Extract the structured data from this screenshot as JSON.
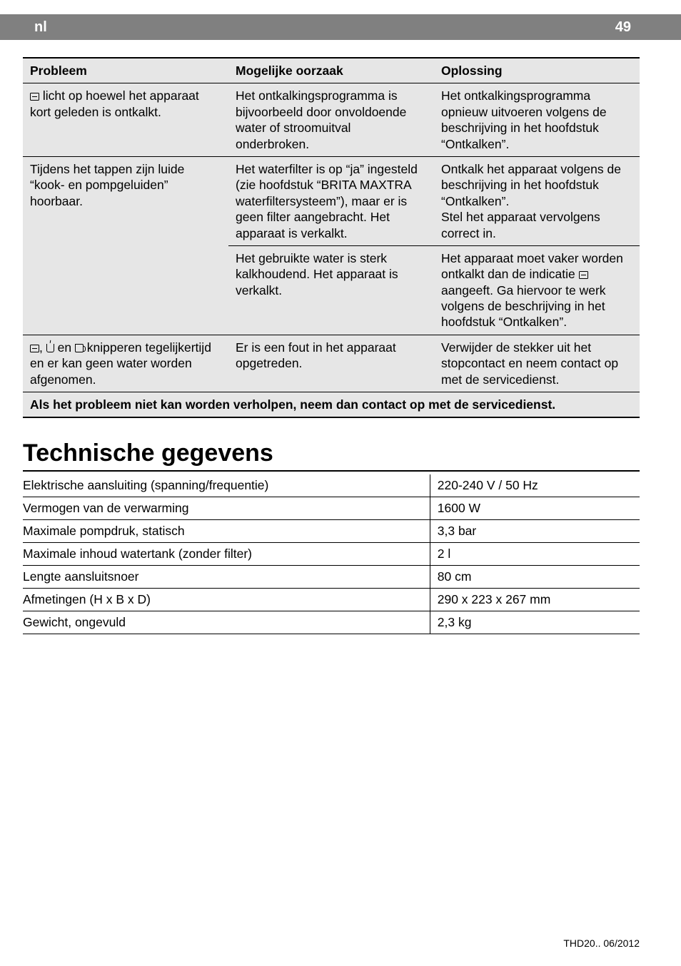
{
  "header": {
    "lang": "nl",
    "page_number": "49"
  },
  "problem_table": {
    "columns": [
      "Probleem",
      "Mogelijke oorzaak",
      "Oplossing"
    ],
    "groups": [
      {
        "rows": [
          {
            "problem_html": "<span class=\"icon-sq\" data-name=\"panel-icon\" data-interactable=\"false\"></span> licht op hoewel het apparaat kort geleden is ontkalkt.",
            "cause": "Het ontkalkingsprogramma is bijvoorbeeld door onvoldoende water of stroomuitval onderbroken.",
            "solution": "Het ontkalkingsprogramma opnieuw uitvoeren volgens de beschrijving in het hoofdstuk “Ontkalken”."
          }
        ]
      },
      {
        "rows": [
          {
            "problem_html": "Tijdens het tappen zijn luide “kook- en pompgeluiden” hoorbaar.",
            "cause": "Het waterfilter is op “ja” ingesteld (zie hoofdstuk “BRITA MAXTRA waterfiltersysteem”), maar er is geen filter aangebracht. Het apparaat is verkalkt.",
            "solution": "Ontkalk het apparaat volgens de beschrijving in het hoofdstuk “Ontkalken”.\nStel het apparaat vervolgens correct in."
          },
          {
            "problem_html": "",
            "cause": "Het gebruikte water is sterk kalkhoudend. Het apparaat is verkalkt.",
            "solution_html": "Het apparaat moet vaker worden ontkalkt dan de indicatie <span class=\"icon-sq\" data-name=\"panel-icon\" data-interactable=\"false\"></span> aangeeft. Ga hiervoor te werk volgens de beschrijving in het hoofdstuk “Ontkalken”."
          }
        ]
      },
      {
        "rows": [
          {
            "problem_html": "<span class=\"icon-sq\" data-name=\"panel-icon\" data-interactable=\"false\"></span>, <span class=\"icon-cup\" data-name=\"cup-icon\" data-interactable=\"false\"></span> en <span class=\"icon-jug\" data-name=\"jug-icon\" data-interactable=\"false\"></span> knipperen tegelijkertijd en er kan geen water worden afgenomen.",
            "cause": "Er is een fout in het apparaat opgetreden.",
            "solution": "Verwijder de stekker uit het stopcontact en neem contact op met de servicedienst."
          }
        ]
      }
    ],
    "footer": "Als het probleem niet kan worden verholpen, neem dan contact op met de servicedienst."
  },
  "tech_section": {
    "title": "Technische gegevens",
    "rows": [
      {
        "label": "Elektrische aansluiting (spanning/frequentie)",
        "value": "220-240 V / 50 Hz"
      },
      {
        "label": "Vermogen van de verwarming",
        "value": "1600 W"
      },
      {
        "label": "Maximale pompdruk, statisch",
        "value": "3,3 bar"
      },
      {
        "label": "Maximale inhoud watertank (zonder filter)",
        "value": "2 l"
      },
      {
        "label": "Lengte aansluitsnoer",
        "value": "80 cm"
      },
      {
        "label": "Afmetingen (H x B x D)",
        "value": "290 x 223 x 267 mm"
      },
      {
        "label": "Gewicht, ongevuld",
        "value": "2,3 kg"
      }
    ]
  },
  "footer_text": "THD20..   06/2012"
}
